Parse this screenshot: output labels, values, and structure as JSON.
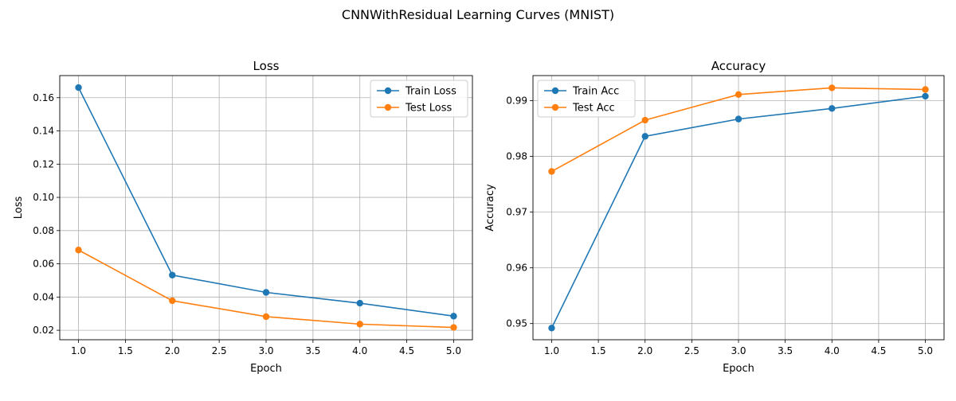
{
  "figure": {
    "suptitle": "CNNWithResidual Learning Curves (MNIST)"
  },
  "chart_data": [
    {
      "type": "line",
      "title": "Loss",
      "xlabel": "Epoch",
      "ylabel": "Loss",
      "x": [
        1,
        2,
        3,
        4,
        5
      ],
      "xlim": [
        0.8,
        5.2
      ],
      "ylim": [
        0.0143,
        0.1733
      ],
      "xticks": [
        1.0,
        1.5,
        2.0,
        2.5,
        3.0,
        3.5,
        4.0,
        4.5,
        5.0
      ],
      "xtick_labels": [
        "1.0",
        "1.5",
        "2.0",
        "2.5",
        "3.0",
        "3.5",
        "4.0",
        "4.5",
        "5.0"
      ],
      "yticks": [
        0.02,
        0.04,
        0.06,
        0.08,
        0.1,
        0.12,
        0.14,
        0.16
      ],
      "ytick_labels": [
        "0.02",
        "0.04",
        "0.06",
        "0.08",
        "0.10",
        "0.12",
        "0.14",
        "0.16"
      ],
      "grid": true,
      "legend_position": "top-right",
      "series": [
        {
          "name": "Train Loss",
          "color": "#1f77b4",
          "values": [
            0.1661,
            0.0532,
            0.0428,
            0.0363,
            0.0285
          ]
        },
        {
          "name": "Test Loss",
          "color": "#ff7f0e",
          "values": [
            0.0683,
            0.0378,
            0.0282,
            0.0237,
            0.0217
          ]
        }
      ]
    },
    {
      "type": "line",
      "title": "Accuracy",
      "xlabel": "Epoch",
      "ylabel": "Accuracy",
      "x": [
        1,
        2,
        3,
        4,
        5
      ],
      "xlim": [
        0.8,
        5.2
      ],
      "ylim": [
        0.9471,
        0.9945
      ],
      "xticks": [
        1.0,
        1.5,
        2.0,
        2.5,
        3.0,
        3.5,
        4.0,
        4.5,
        5.0
      ],
      "xtick_labels": [
        "1.0",
        "1.5",
        "2.0",
        "2.5",
        "3.0",
        "3.5",
        "4.0",
        "4.5",
        "5.0"
      ],
      "yticks": [
        0.95,
        0.96,
        0.97,
        0.98,
        0.99
      ],
      "ytick_labels": [
        "0.95",
        "0.96",
        "0.97",
        "0.98",
        "0.99"
      ],
      "grid": true,
      "legend_position": "top-left",
      "series": [
        {
          "name": "Train Acc",
          "color": "#1f77b4",
          "values": [
            0.9492,
            0.9836,
            0.9867,
            0.9886,
            0.9908
          ]
        },
        {
          "name": "Test Acc",
          "color": "#ff7f0e",
          "values": [
            0.9773,
            0.9865,
            0.9911,
            0.9923,
            0.992
          ]
        }
      ]
    }
  ]
}
